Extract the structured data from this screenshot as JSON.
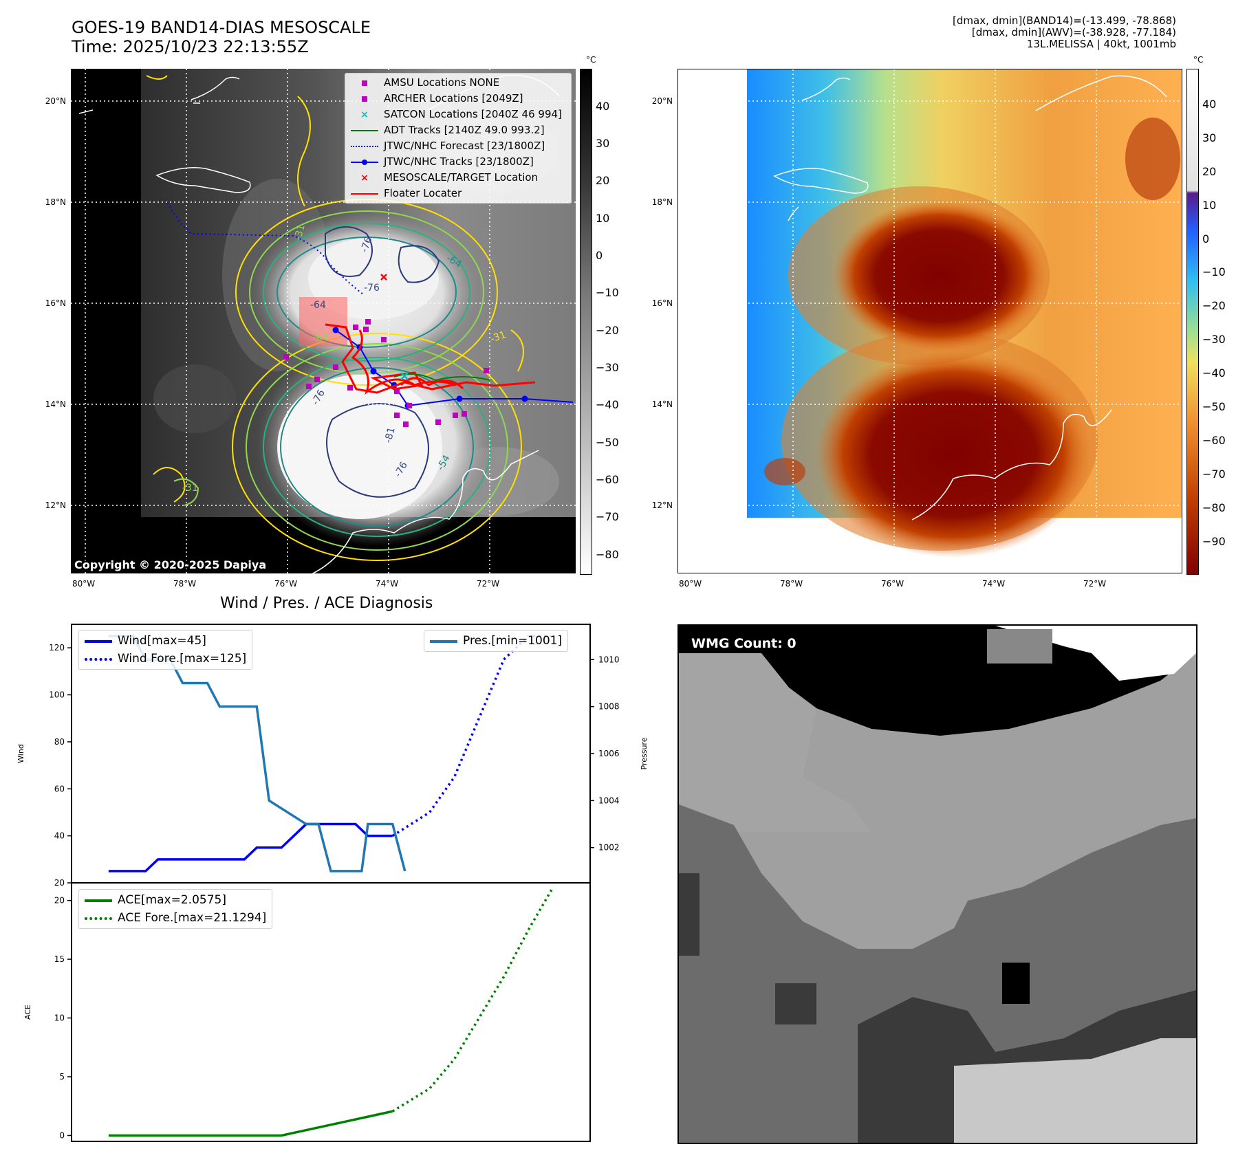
{
  "header": {
    "title_line1": "GOES-19 BAND14-DIAS MESOSCALE",
    "title_line2": "Time: 2025/10/23 22:13:55Z",
    "info_line1": "[dmax, dmin](BAND14)=(-13.499, -78.868)",
    "info_line2": "[dmax, dmin](AWV)=(-38.928, -77.184)",
    "info_line3": "13L.MELISSA | 40kt, 1001mb"
  },
  "map_ir": {
    "lat_ticks": [
      "20°N",
      "18°N",
      "16°N",
      "14°N",
      "12°N"
    ],
    "lon_ticks": [
      "80°W",
      "78°W",
      "76°W",
      "74°W",
      "72°W"
    ],
    "colorbar_unit": "°C",
    "colorbar_ticks": [
      "40",
      "30",
      "20",
      "10",
      "0",
      "−10",
      "−20",
      "−30",
      "−40",
      "−50",
      "−60",
      "−70",
      "−80"
    ],
    "copyright": "Copyright © 2020-2025 Dapiya",
    "contour_labels": [
      "-64",
      "-76",
      "-76",
      "-64",
      "-31",
      "-76",
      "-81",
      "-76",
      "-54",
      "-64",
      "-31",
      "-31"
    ],
    "legend": [
      {
        "label": "AMSU Locations NONE",
        "symbol": "square",
        "color": "#c000c0"
      },
      {
        "label": "ARCHER Locations [2049Z]",
        "symbol": "square",
        "color": "#c000c0"
      },
      {
        "label": "SATCON Locations [2040Z 46 994]",
        "symbol": "x",
        "color": "#00c0c0"
      },
      {
        "label": "ADT Tracks [2140Z 49.0 993.2]",
        "symbol": "line",
        "color": "#008000"
      },
      {
        "label": "JTWC/NHC Forecast [23/1800Z]",
        "symbol": "dotted",
        "color": "#0000ff"
      },
      {
        "label": "JTWC/NHC Tracks [23/1800Z]",
        "symbol": "line-dot",
        "color": "#0000ff"
      },
      {
        "label": "MESOSCALE/TARGET Location",
        "symbol": "x",
        "color": "#ff0000"
      },
      {
        "label": "Floater Locater",
        "symbol": "line",
        "color": "#ff0000"
      }
    ]
  },
  "map_wv": {
    "lat_ticks": [
      "20°N",
      "18°N",
      "16°N",
      "14°N",
      "12°N"
    ],
    "lon_ticks": [
      "80°W",
      "78°W",
      "76°W",
      "74°W",
      "72°W"
    ],
    "colorbar_unit": "°C",
    "colorbar_ticks": [
      "40",
      "30",
      "20",
      "10",
      "0",
      "−10",
      "−20",
      "−30",
      "−40",
      "−50",
      "−60",
      "−70",
      "−80",
      "−90"
    ]
  },
  "wind_panel": {
    "title": "Wind / Pres. / ACE Diagnosis",
    "wind_ylabel": "Wind",
    "pres_ylabel": "Pressure",
    "ace_ylabel": "ACE",
    "legend_wind": "Wind[max=45]",
    "legend_wind_fore": "Wind Fore.[max=125]",
    "legend_pres": "Pres.[min=1001]",
    "legend_ace": "ACE[max=2.0575]",
    "legend_ace_fore": "ACE Fore.[max=21.1294]"
  },
  "wmg_panel": {
    "label": "WMG Count: 0"
  },
  "chart_data": [
    {
      "type": "line",
      "panel": "wind",
      "ylim": [
        20,
        130
      ],
      "yticks": [
        20,
        40,
        60,
        80,
        100,
        120
      ],
      "x": [
        0,
        1,
        2,
        3,
        4,
        5,
        6,
        7,
        8,
        9,
        10,
        11,
        12,
        13,
        14,
        15,
        16,
        17,
        18,
        19,
        20,
        21,
        22,
        23,
        24,
        25
      ],
      "series": [
        {
          "name": "Wind[max=45]",
          "color": "#0000ff",
          "style": "solid",
          "x": [
            0,
            3,
            4,
            11,
            12,
            14,
            16,
            20,
            21,
            23
          ],
          "values": [
            25,
            25,
            30,
            30,
            35,
            35,
            45,
            45,
            40,
            40
          ]
        },
        {
          "name": "Wind Fore.[max=125]",
          "color": "#0000ff",
          "style": "dotted",
          "x": [
            23,
            26,
            28,
            30,
            32,
            34,
            36
          ],
          "values": [
            40,
            50,
            65,
            90,
            115,
            125,
            125
          ]
        }
      ]
    },
    {
      "type": "line",
      "panel": "pressure",
      "ylim": [
        1000.5,
        1011.5
      ],
      "yticks": [
        1002,
        1004,
        1006,
        1008,
        1010
      ],
      "series": [
        {
          "name": "Pres.[min=1001]",
          "color": "#1f77b4",
          "style": "solid",
          "x": [
            0,
            2,
            3,
            5,
            6,
            8,
            9,
            12,
            13,
            16,
            17,
            18,
            19,
            20,
            20.5,
            21,
            22,
            23,
            24
          ],
          "values": [
            1011,
            1011,
            1010,
            1010,
            1009,
            1009,
            1008,
            1008,
            1004,
            1003,
            1003,
            1001,
            1001,
            1001,
            1001,
            1003,
            1003,
            1003,
            1001
          ]
        }
      ]
    },
    {
      "type": "line",
      "panel": "ace",
      "ylim": [
        -0.5,
        21.5
      ],
      "yticks": [
        0,
        5,
        10,
        15,
        20
      ],
      "series": [
        {
          "name": "ACE[max=2.0575]",
          "color": "#008000",
          "style": "solid",
          "x": [
            0,
            14,
            21,
            23
          ],
          "values": [
            0,
            0,
            1.6,
            2.06
          ]
        },
        {
          "name": "ACE Fore.[max=21.1294]",
          "color": "#008000",
          "style": "dotted",
          "x": [
            23,
            26,
            28,
            30,
            32,
            34,
            36
          ],
          "values": [
            2.06,
            4,
            6.5,
            10,
            13.5,
            17.5,
            21.13
          ]
        }
      ]
    }
  ]
}
